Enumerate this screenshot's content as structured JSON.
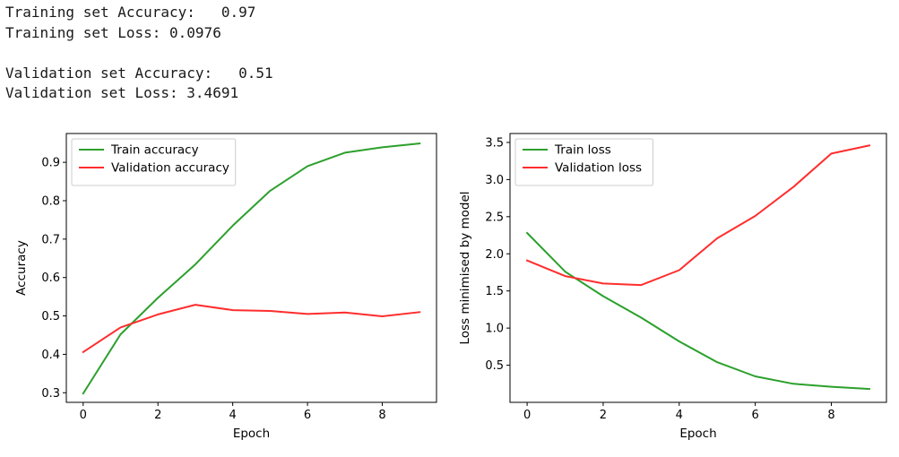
{
  "console": {
    "lines": [
      "Training set Accuracy:   0.97",
      "Training set Loss: 0.0976",
      "",
      "Validation set Accuracy:   0.51",
      "Validation set Loss: 3.4691"
    ]
  },
  "chart_data": [
    {
      "type": "line",
      "title": "",
      "xlabel": "Epoch",
      "ylabel": "Accuracy",
      "xlim": [
        -0.45,
        9.45
      ],
      "ylim": [
        0.275,
        0.975
      ],
      "xticks": [
        0,
        2,
        4,
        6,
        8
      ],
      "yticks": [
        0.3,
        0.4,
        0.5,
        0.6,
        0.7,
        0.8,
        0.9
      ],
      "ytick_labels": [
        "0.3",
        "0.4",
        "0.5",
        "0.6",
        "0.7",
        "0.8",
        "0.9"
      ],
      "x": [
        0,
        1,
        2,
        3,
        4,
        5,
        6,
        7,
        8,
        9
      ],
      "series": [
        {
          "name": "Train accuracy",
          "color": "#2ca02c",
          "values": [
            0.298,
            0.452,
            0.547,
            0.634,
            0.735,
            0.826,
            0.89,
            0.925,
            0.939,
            0.949
          ]
        },
        {
          "name": "Validation accuracy",
          "color": "#ff2d2d",
          "values": [
            0.406,
            0.47,
            0.504,
            0.529,
            0.515,
            0.513,
            0.505,
            0.509,
            0.499,
            0.51
          ]
        }
      ],
      "grid": false,
      "legend": "upper-left"
    },
    {
      "type": "line",
      "title": "",
      "xlabel": "Epoch",
      "ylabel": "Loss minimised by model",
      "xlim": [
        -0.45,
        9.45
      ],
      "ylim": [
        0.0,
        3.62
      ],
      "xticks": [
        0,
        2,
        4,
        6,
        8
      ],
      "yticks": [
        0.5,
        1.0,
        1.5,
        2.0,
        2.5,
        3.0,
        3.5
      ],
      "ytick_labels": [
        "0.5",
        "1.0",
        "1.5",
        "2.0",
        "2.5",
        "3.0",
        "3.5"
      ],
      "x": [
        0,
        1,
        2,
        3,
        4,
        5,
        6,
        7,
        8,
        9
      ],
      "series": [
        {
          "name": "Train loss",
          "color": "#2ca02c",
          "values": [
            2.28,
            1.76,
            1.43,
            1.14,
            0.82,
            0.54,
            0.35,
            0.25,
            0.21,
            0.18
          ]
        },
        {
          "name": "Validation loss",
          "color": "#ff2d2d",
          "values": [
            1.91,
            1.7,
            1.6,
            1.58,
            1.78,
            2.21,
            2.51,
            2.9,
            3.35,
            3.46
          ]
        }
      ],
      "grid": false,
      "legend": "upper-left"
    }
  ]
}
